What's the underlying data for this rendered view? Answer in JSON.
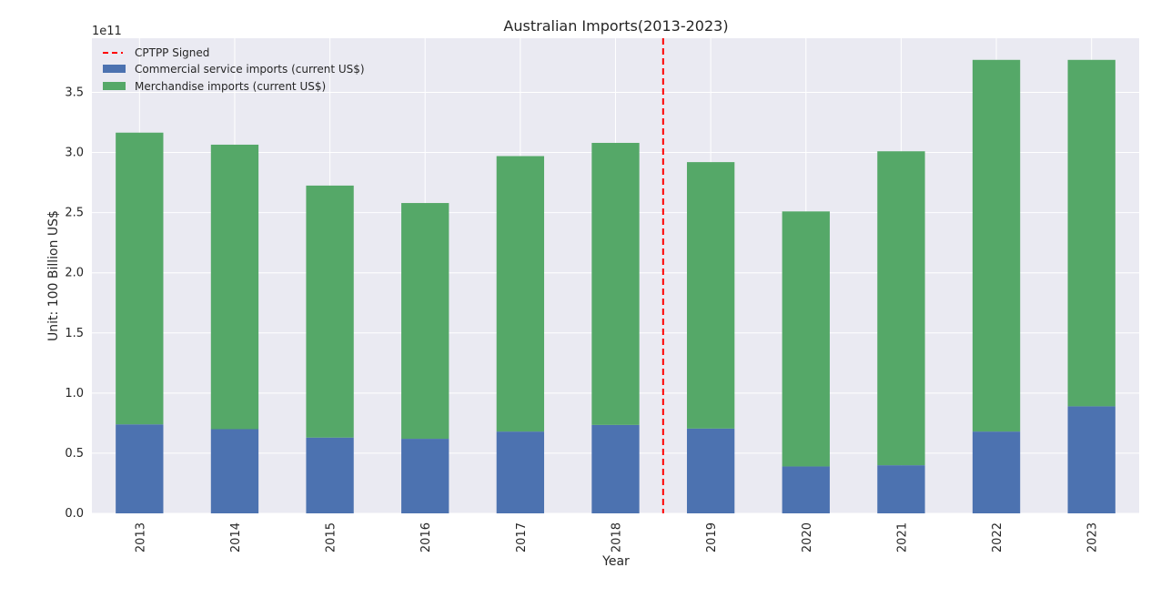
{
  "chart_data": {
    "type": "bar",
    "stacked": true,
    "title": "Australian Imports(2013-2023)",
    "xlabel": "Year",
    "ylabel": "Unit: 100 Billion US$",
    "y_offset_label": "1e11",
    "categories": [
      "2013",
      "2014",
      "2015",
      "2016",
      "2017",
      "2018",
      "2019",
      "2020",
      "2021",
      "2022",
      "2023"
    ],
    "series": [
      {
        "name": "Commercial service imports (current US$)",
        "color": "#4c72b0",
        "values": [
          0.74,
          0.7,
          0.63,
          0.62,
          0.68,
          0.735,
          0.705,
          0.39,
          0.4,
          0.68,
          0.89
        ]
      },
      {
        "name": "Merchandise imports (current US$)",
        "color": "#55a868",
        "values": [
          2.425,
          2.365,
          2.095,
          1.96,
          2.29,
          2.345,
          2.215,
          2.12,
          2.61,
          3.09,
          2.88
        ]
      }
    ],
    "ylim": [
      0,
      3.95
    ],
    "yticks": [
      "0.0",
      "0.5",
      "1.0",
      "1.5",
      "2.0",
      "2.5",
      "3.0",
      "3.5"
    ],
    "marker_line": {
      "label": "CPTPP Signed",
      "position_between": [
        "2018",
        "2019"
      ],
      "color": "#ff0000",
      "style": "dashed"
    },
    "legend_position": "top-left",
    "grid": true,
    "background": "#eaeaf2"
  }
}
